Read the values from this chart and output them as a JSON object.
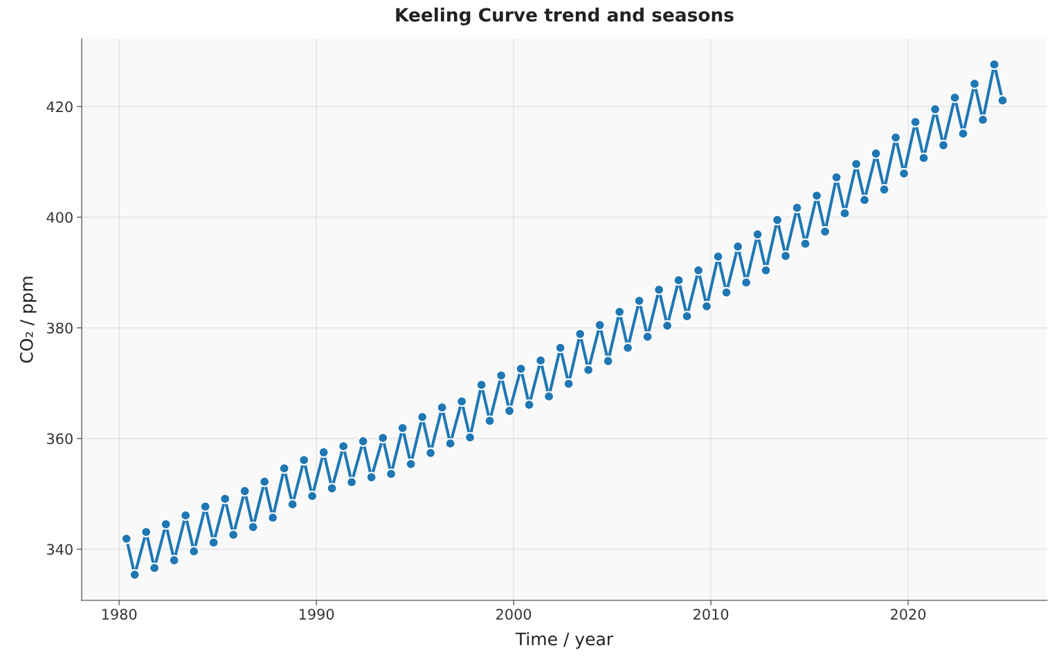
{
  "chart_data": {
    "type": "line",
    "title": "Keeling Curve trend and seasons",
    "xlabel": "Time / year",
    "ylabel": "CO₂ / ppm",
    "x": [
      1980.37,
      1980.79,
      1981.37,
      1981.79,
      1982.37,
      1982.79,
      1983.37,
      1983.79,
      1984.37,
      1984.79,
      1985.37,
      1985.79,
      1986.37,
      1986.79,
      1987.37,
      1987.79,
      1988.37,
      1988.79,
      1989.37,
      1989.79,
      1990.37,
      1990.79,
      1991.37,
      1991.79,
      1992.37,
      1992.79,
      1993.37,
      1993.79,
      1994.37,
      1994.79,
      1995.37,
      1995.79,
      1996.37,
      1996.79,
      1997.37,
      1997.79,
      1998.37,
      1998.79,
      1999.37,
      1999.79,
      2000.37,
      2000.79,
      2001.37,
      2001.79,
      2002.37,
      2002.79,
      2003.37,
      2003.79,
      2004.37,
      2004.79,
      2005.37,
      2005.79,
      2006.37,
      2006.79,
      2007.37,
      2007.79,
      2008.37,
      2008.79,
      2009.37,
      2009.79,
      2010.37,
      2010.79,
      2011.37,
      2011.79,
      2012.37,
      2012.79,
      2013.37,
      2013.79,
      2014.37,
      2014.79,
      2015.37,
      2015.79,
      2016.37,
      2016.79,
      2017.37,
      2017.79,
      2018.37,
      2018.79,
      2019.37,
      2019.79,
      2020.37,
      2020.79,
      2021.37,
      2021.79,
      2022.37,
      2022.79,
      2023.37,
      2023.79,
      2024.37,
      2024.79
    ],
    "series": [
      {
        "color": "#1f77b4",
        "values": [
          341.9,
          335.4,
          343.1,
          336.6,
          344.5,
          338.0,
          346.1,
          339.6,
          347.7,
          341.2,
          349.1,
          342.6,
          350.5,
          344.0,
          352.2,
          345.7,
          354.6,
          348.1,
          356.1,
          349.6,
          357.5,
          351.0,
          358.6,
          352.1,
          359.5,
          353.0,
          360.1,
          353.6,
          361.9,
          355.4,
          363.9,
          357.4,
          365.6,
          359.1,
          366.7,
          360.2,
          369.7,
          363.2,
          371.4,
          365.0,
          372.6,
          366.1,
          374.1,
          367.6,
          376.4,
          369.9,
          378.9,
          372.4,
          380.5,
          374.0,
          382.9,
          376.4,
          384.9,
          378.4,
          386.9,
          380.4,
          388.6,
          382.1,
          390.4,
          383.9,
          392.9,
          386.4,
          394.7,
          388.2,
          396.9,
          390.4,
          399.5,
          393.0,
          401.7,
          395.2,
          403.9,
          397.4,
          407.2,
          400.7,
          409.6,
          403.1,
          411.5,
          405.0,
          414.4,
          407.9,
          417.2,
          410.7,
          419.5,
          413.0,
          421.6,
          415.1,
          424.1,
          417.6,
          427.6,
          421.1
        ]
      }
    ],
    "xlim": [
      1978.1,
      2027.05
    ],
    "xticks": [
      1980,
      1990,
      2000,
      2010,
      2020
    ],
    "ylim": [
      330.75,
      432.25
    ],
    "yticks": [
      340,
      360,
      380,
      400,
      420
    ],
    "grid": true,
    "marker": "circle",
    "line_style": "solid",
    "legend": false
  }
}
